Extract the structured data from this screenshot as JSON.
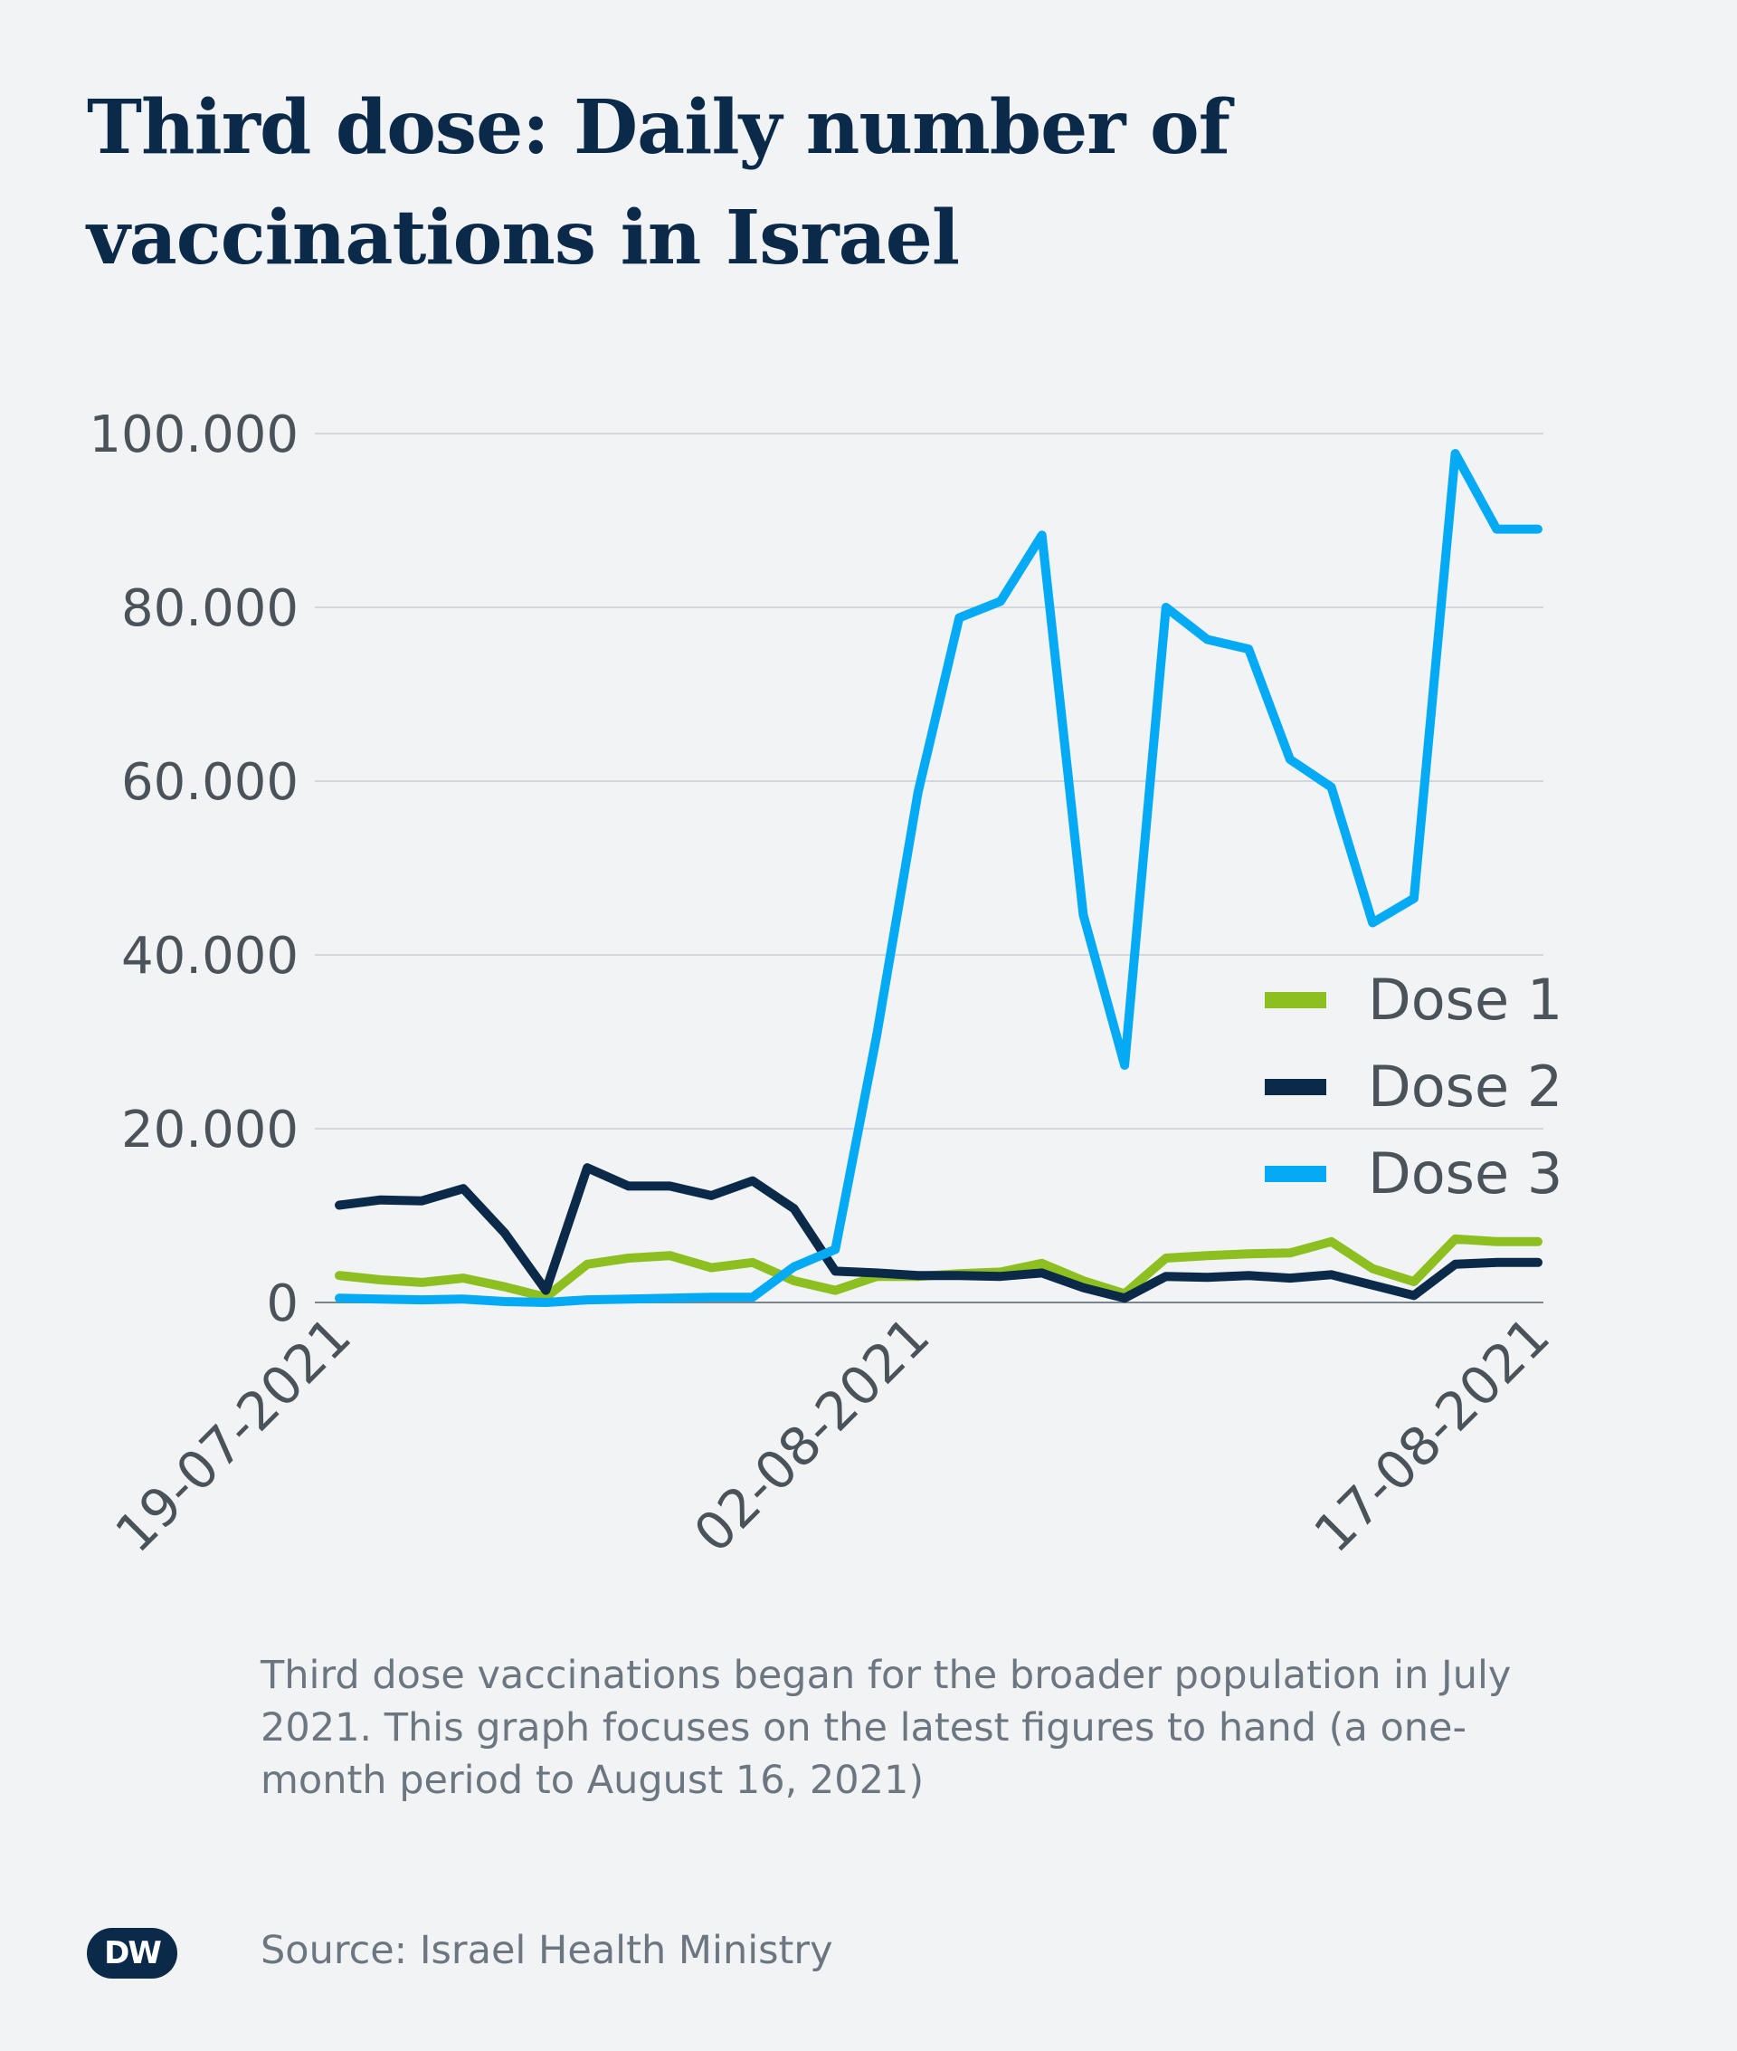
{
  "header": {
    "title": "Third dose: Daily number of vaccinations in Israel"
  },
  "footer": {
    "caption": "Third dose vaccinations began for the broader population in July 2021. This graph focuses on the latest figures to hand (a one-month period to August 16, 2021)",
    "source": "Source: Israel Health Ministry",
    "logo_text": "DW"
  },
  "colors": {
    "background": "#f1f3f5",
    "title": "#0b2a4a",
    "dose1": "#8cbf1f",
    "dose2": "#0b2a4a",
    "dose3": "#05aaf5",
    "grid": "#c9cdd2",
    "axis_text": "#4a525a"
  },
  "chart_data": {
    "type": "line",
    "title": "Third dose: Daily number of vaccinations in Israel",
    "xlabel": "",
    "ylabel": "",
    "ylim": [
      0,
      100000
    ],
    "yticks": [
      0,
      20000,
      40000,
      60000,
      80000,
      100000
    ],
    "ytick_labels": [
      "0",
      "20.000",
      "40.000",
      "60.000",
      "80.000",
      "100.000"
    ],
    "x": [
      "19-07-2021",
      "20-07-2021",
      "21-07-2021",
      "22-07-2021",
      "23-07-2021",
      "24-07-2021",
      "25-07-2021",
      "26-07-2021",
      "27-07-2021",
      "28-07-2021",
      "29-07-2021",
      "30-07-2021",
      "31-07-2021",
      "01-08-2021",
      "02-08-2021",
      "03-08-2021",
      "04-08-2021",
      "05-08-2021",
      "06-08-2021",
      "07-08-2021",
      "08-08-2021",
      "09-08-2021",
      "10-08-2021",
      "11-08-2021",
      "12-08-2021",
      "13-08-2021",
      "14-08-2021",
      "15-08-2021",
      "16-08-2021",
      "17-08-2021"
    ],
    "xtick_labels": [
      "19-07-2021",
      "02-08-2021",
      "17-08-2021"
    ],
    "grid": true,
    "legend_position": "right",
    "series": [
      {
        "name": "Dose 1",
        "color": "#8cbf1f",
        "values": [
          3100,
          2600,
          2300,
          2800,
          1800,
          600,
          4400,
          5100,
          5400,
          4000,
          4600,
          2500,
          1400,
          3000,
          3000,
          3300,
          3500,
          4500,
          2500,
          1000,
          5100,
          5400,
          5600,
          5700,
          7000,
          3900,
          2400,
          7300,
          7000,
          7000
        ]
      },
      {
        "name": "Dose 2",
        "color": "#0b2a4a",
        "values": [
          11200,
          11800,
          11700,
          13100,
          8000,
          1400,
          15500,
          13400,
          13400,
          12300,
          14000,
          10800,
          3600,
          3400,
          3100,
          3100,
          3000,
          3400,
          1700,
          500,
          3000,
          2900,
          3100,
          2800,
          3200,
          2000,
          800,
          4400,
          4600,
          4600
        ]
      },
      {
        "name": "Dose 3",
        "color": "#05aaf5",
        "values": [
          500,
          400,
          300,
          400,
          100,
          0,
          300,
          400,
          500,
          600,
          600,
          4100,
          6100,
          30700,
          58700,
          78800,
          80700,
          88300,
          44600,
          27300,
          80000,
          76300,
          75200,
          62500,
          59300,
          43700,
          46500,
          97700,
          89000,
          89000
        ]
      }
    ]
  }
}
